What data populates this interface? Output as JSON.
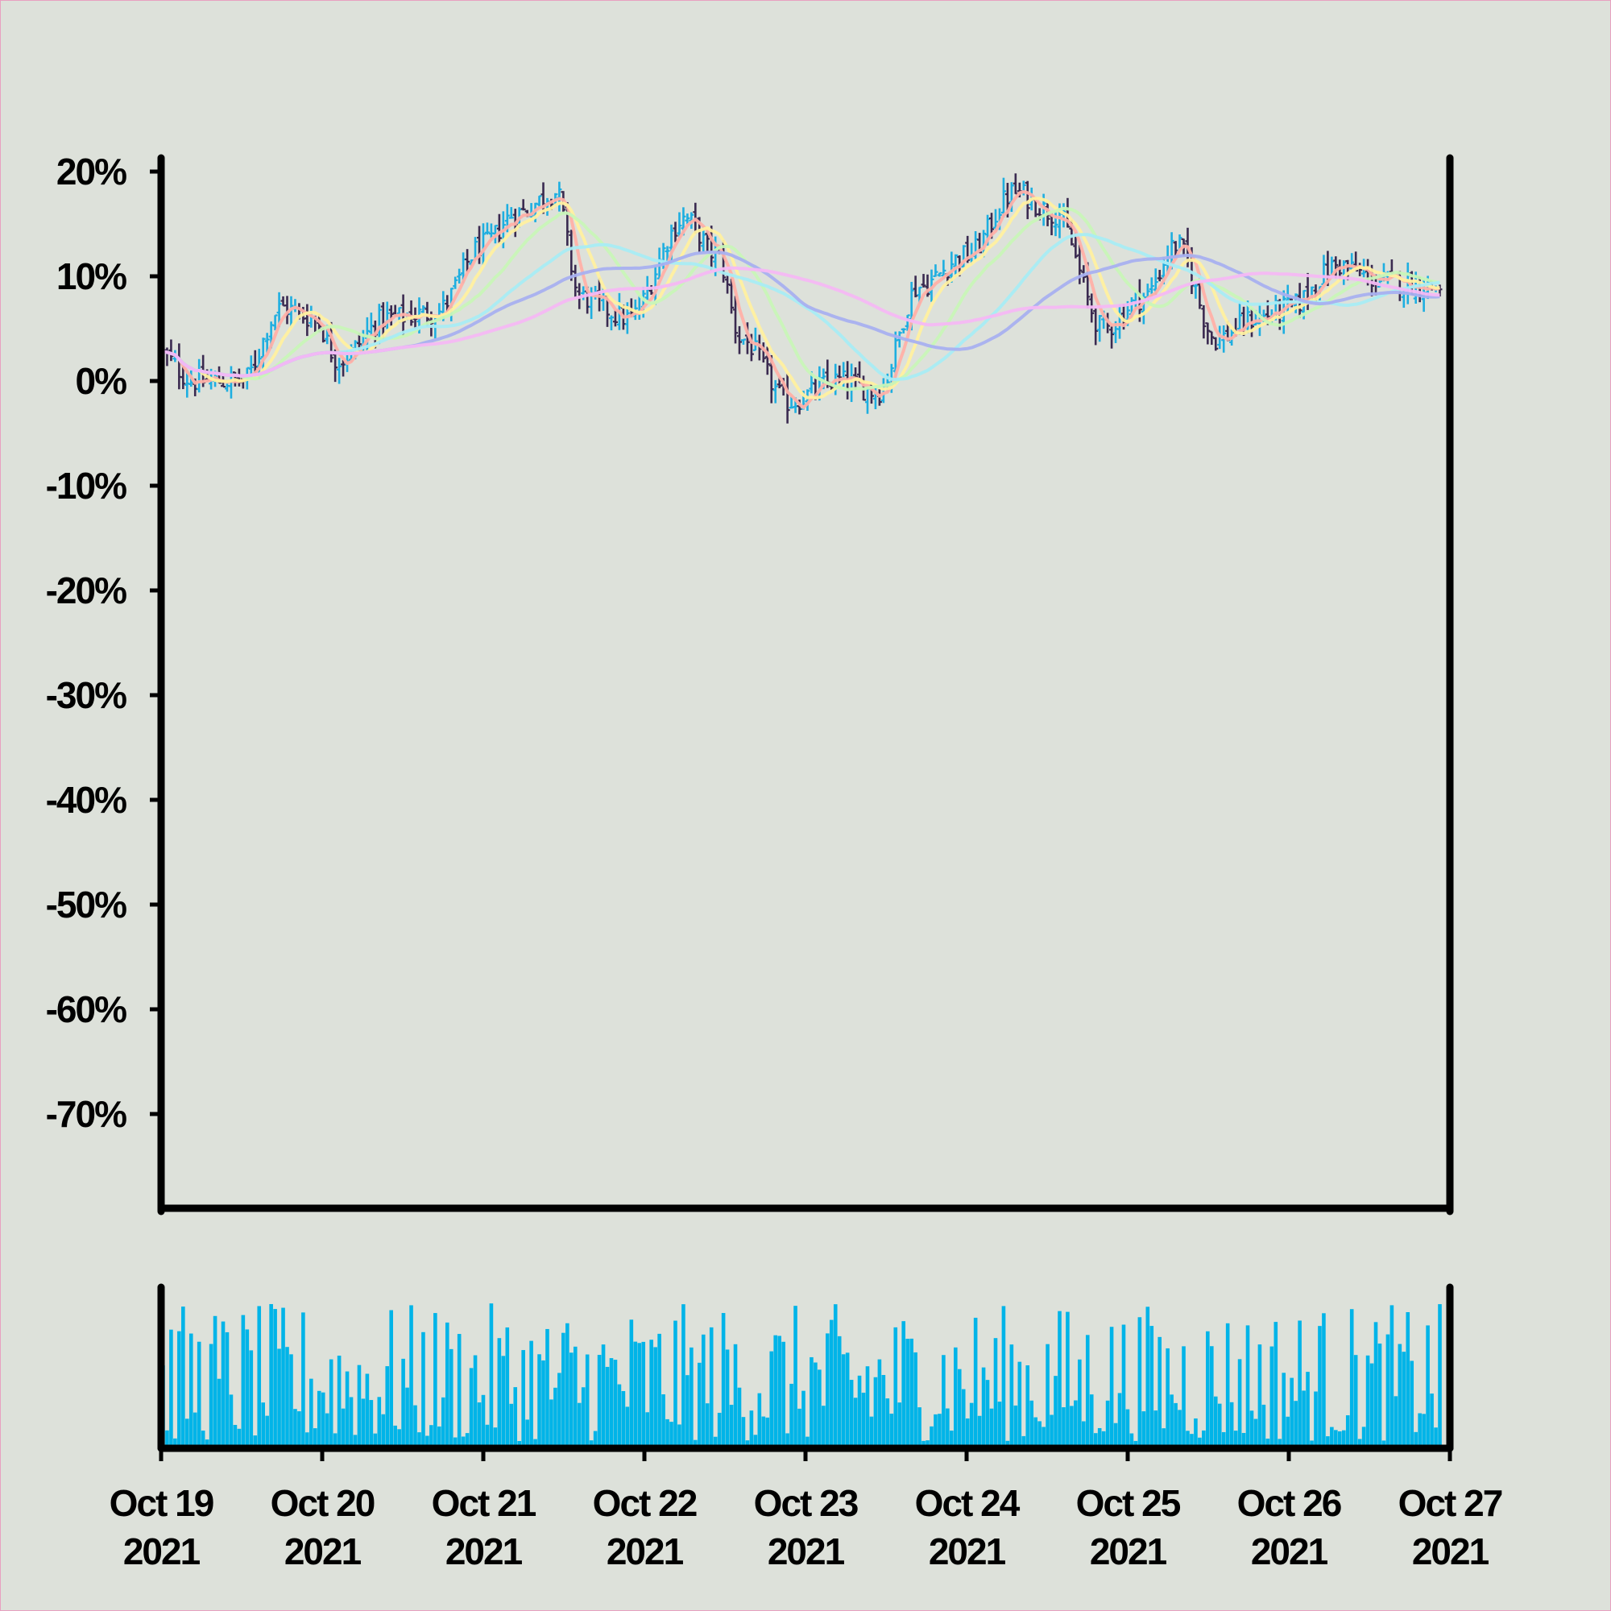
{
  "chart_data": {
    "type": "ohlc",
    "title": "",
    "xlabel": "",
    "ylabel": "",
    "y_axis": {
      "ticks": [
        "20%",
        "10%",
        "0%",
        "-10%",
        "-20%",
        "-30%",
        "-40%",
        "-50%",
        "-60%",
        "-70%"
      ],
      "tick_values": [
        20,
        10,
        0,
        -10,
        -20,
        -30,
        -40,
        -50,
        -60,
        -70
      ],
      "ylim": [
        -79,
        21
      ],
      "unit": "%"
    },
    "x_axis": {
      "tick_labels": [
        {
          "date": "Oct 19",
          "year": "2021"
        },
        {
          "date": "Oct 20",
          "year": "2021"
        },
        {
          "date": "Oct 21",
          "year": "2021"
        },
        {
          "date": "Oct 22",
          "year": "2021"
        },
        {
          "date": "Oct 23",
          "year": "2021"
        },
        {
          "date": "Oct 24",
          "year": "2021"
        },
        {
          "date": "Oct 25",
          "year": "2021"
        },
        {
          "date": "Oct 26",
          "year": "2021"
        },
        {
          "date": "Oct 27",
          "year": "2021"
        }
      ],
      "start": "2021-10-19",
      "end": "2021-10-27"
    },
    "grid": false,
    "legend": "none",
    "price_close_anchors_pct": [
      [
        0.0,
        2.5
      ],
      [
        0.2,
        0.0
      ],
      [
        0.5,
        0.0
      ],
      [
        0.75,
        7.0
      ],
      [
        0.95,
        6.0
      ],
      [
        1.1,
        2.0
      ],
      [
        1.4,
        6.0
      ],
      [
        1.7,
        6.5
      ],
      [
        2.0,
        13.0
      ],
      [
        2.2,
        16.0
      ],
      [
        2.45,
        18.0
      ],
      [
        2.6,
        8.0
      ],
      [
        2.9,
        6.0
      ],
      [
        3.25,
        15.5
      ],
      [
        3.45,
        12.0
      ],
      [
        3.6,
        4.0
      ],
      [
        3.9,
        -2.0
      ],
      [
        4.2,
        0.0
      ],
      [
        4.45,
        -1.0
      ],
      [
        4.7,
        9.0
      ],
      [
        5.0,
        12.0
      ],
      [
        5.3,
        18.0
      ],
      [
        5.55,
        16.0
      ],
      [
        5.85,
        5.0
      ],
      [
        6.1,
        8.0
      ],
      [
        6.3,
        13.0
      ],
      [
        6.55,
        4.0
      ],
      [
        6.8,
        6.0
      ],
      [
        7.0,
        7.0
      ],
      [
        7.3,
        11.0
      ],
      [
        7.6,
        9.5
      ],
      [
        7.95,
        9.0
      ]
    ],
    "moving_averages": [
      {
        "window_bars": 5,
        "color": "#ffb0a8"
      },
      {
        "window_bars": 10,
        "color": "#fff0a0"
      },
      {
        "window_bars": 20,
        "color": "#c8f5b8"
      },
      {
        "window_bars": 40,
        "color": "#a8ecf4"
      },
      {
        "window_bars": 60,
        "color": "#a8b0f0"
      },
      {
        "window_bars": 90,
        "color": "#f4b8f4"
      }
    ],
    "volume_panel": {
      "bar_count": 320,
      "color": "#00b4e8"
    },
    "colors": {
      "background": "#dde1da",
      "up_bar": "#1eaee0",
      "down_bar": "#3a2a50",
      "axis": "#000000"
    }
  }
}
